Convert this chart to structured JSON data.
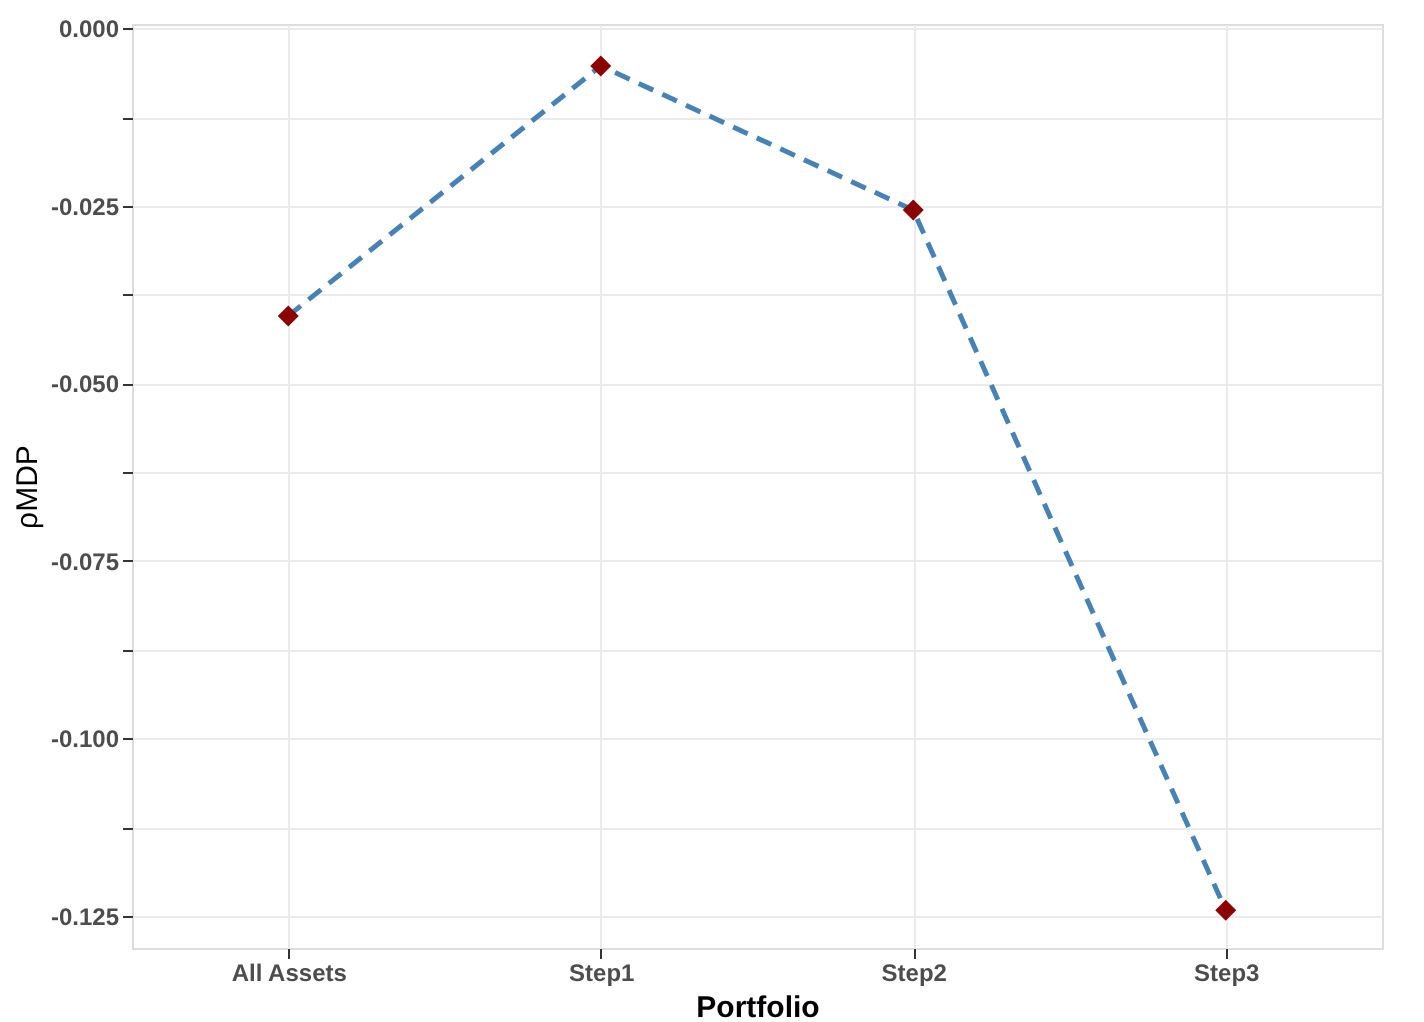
{
  "chart_data": {
    "type": "line",
    "xlabel": "Portfolio",
    "ylabel": "ρMDP",
    "categories": [
      "All Assets",
      "Step1",
      "Step2",
      "Step3"
    ],
    "series": [
      {
        "color": "#4682b4",
        "line_style": "dashed",
        "marker": "none",
        "values": [
          -0.0405,
          -0.0053,
          -0.0256,
          -0.1242
        ]
      },
      {
        "type": "scatter",
        "color": "#8b0000",
        "marker": "diamond",
        "values": [
          -0.0405,
          -0.0053,
          -0.0256,
          -0.1242
        ]
      }
    ],
    "ylim": [
      -0.1295,
      0.0006
    ],
    "yticks": [
      {
        "value": -0.125,
        "label": "-0.125"
      },
      {
        "value": -0.1125,
        "label": null
      },
      {
        "value": -0.1,
        "label": "-0.100"
      },
      {
        "value": -0.0875,
        "label": null
      },
      {
        "value": -0.075,
        "label": "-0.075"
      },
      {
        "value": -0.0625,
        "label": null
      },
      {
        "value": -0.05,
        "label": "-0.050"
      },
      {
        "value": -0.0375,
        "label": null
      },
      {
        "value": -0.025,
        "label": "-0.025"
      },
      {
        "value": -0.0125,
        "label": null
      },
      {
        "value": 0,
        "label": "0.000"
      }
    ],
    "grid": true
  }
}
